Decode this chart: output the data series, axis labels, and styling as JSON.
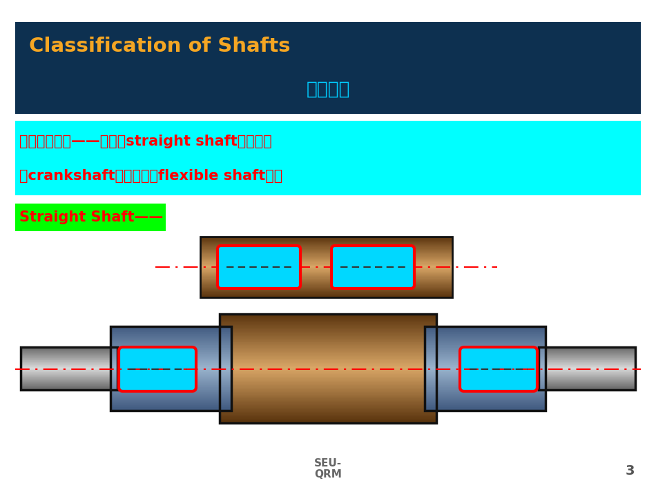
{
  "title_line1": "Classification of Shafts",
  "title_line2": "轴的分类",
  "title_bg": "#0d3050",
  "title_color1": "#f5a623",
  "title_color2": "#00ccff",
  "cyan_bg": "#00ffff",
  "green_bg": "#00ff00",
  "green_text": "Straight Shaft——",
  "footer_text1": "SEU-",
  "footer_text2": "QRM",
  "page_num": "3",
  "bg_color": "#ffffff",
  "shaft_tan_light": [
    0.85,
    0.65,
    0.4
  ],
  "shaft_tan_dark": [
    0.35,
    0.2,
    0.05
  ],
  "shaft_blue_light": [
    0.6,
    0.7,
    0.8
  ],
  "shaft_blue_dark": [
    0.25,
    0.35,
    0.5
  ],
  "shaft_gray_light": [
    0.85,
    0.85,
    0.85
  ],
  "shaft_gray_dark": [
    0.4,
    0.4,
    0.4
  ]
}
